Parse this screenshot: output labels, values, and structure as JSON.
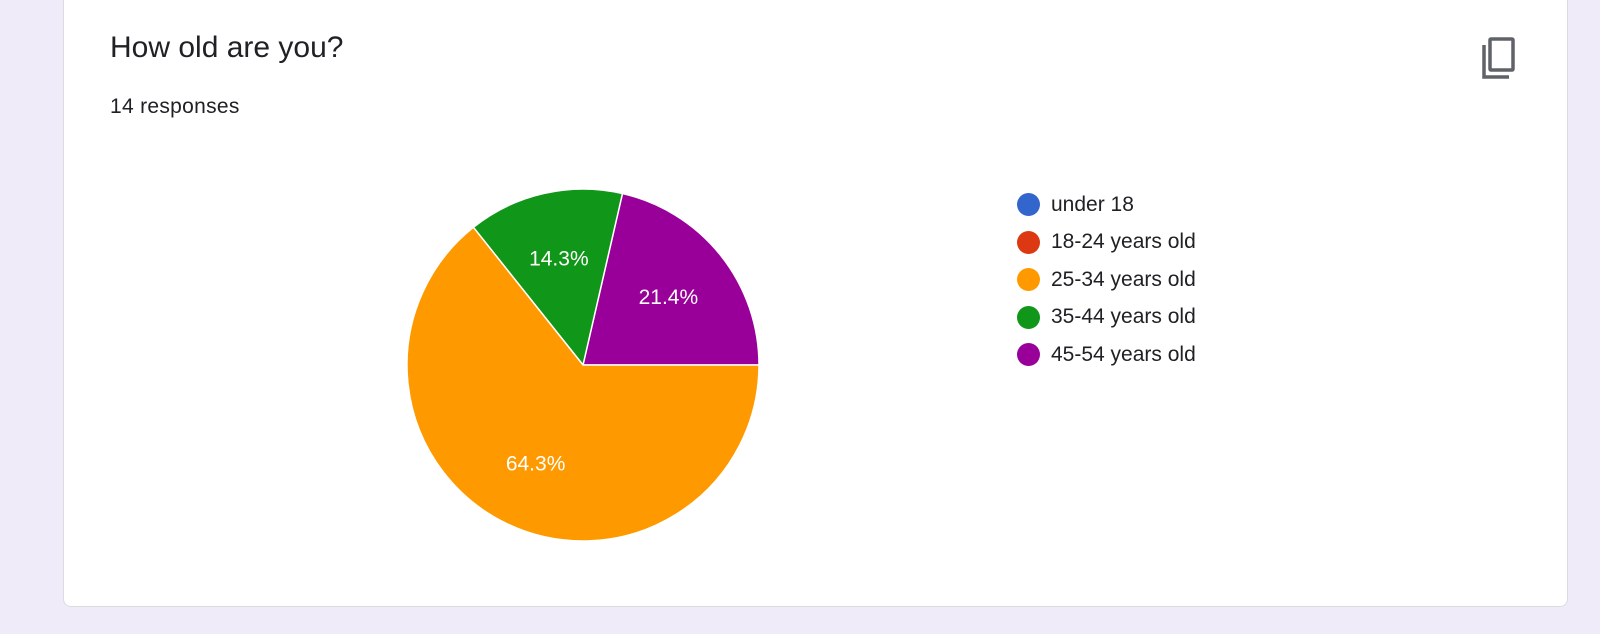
{
  "question": {
    "title": "How old are you?",
    "responses_label": "14 responses"
  },
  "icons": {
    "copy": "copy-icon"
  },
  "chart_data": {
    "type": "pie",
    "title": "",
    "categories": [
      "under 18",
      "18-24 years old",
      "25-34 years old",
      "35-44 years old",
      "45-54 years old"
    ],
    "values": [
      0,
      0,
      64.3,
      14.3,
      21.4
    ],
    "value_labels": [
      "",
      "",
      "64.3%",
      "14.3%",
      "21.4%"
    ],
    "colors": [
      "#3366cc",
      "#dc3912",
      "#ff9900",
      "#109618",
      "#990099"
    ],
    "legend_position": "right"
  }
}
